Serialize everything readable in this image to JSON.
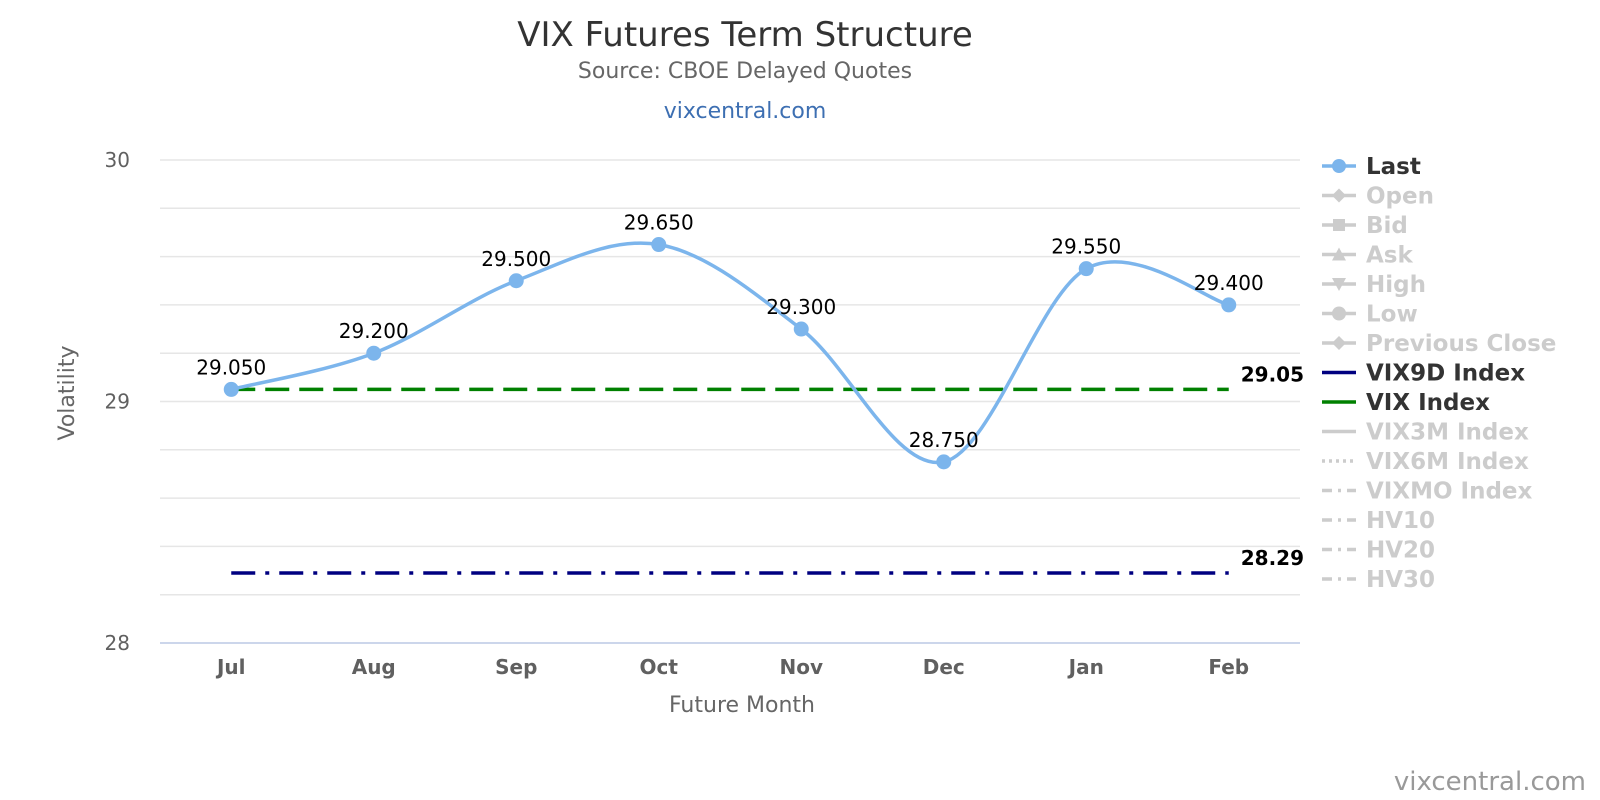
{
  "chart_data": {
    "type": "line",
    "title": "VIX Futures Term Structure",
    "subtitle": "Source: CBOE Delayed Quotes",
    "site_link": "vixcentral.com",
    "credit": "vixcentral.com",
    "xlabel": "Future Month",
    "ylabel": "Volatility",
    "categories": [
      "Jul",
      "Aug",
      "Sep",
      "Oct",
      "Nov",
      "Dec",
      "Jan",
      "Feb"
    ],
    "ylim": [
      28,
      30
    ],
    "yticks": [
      "28",
      "29",
      "30"
    ],
    "grid": true,
    "legend_position": "right",
    "series": [
      {
        "name": "Last",
        "values": [
          29.05,
          29.2,
          29.5,
          29.65,
          29.3,
          28.75,
          29.55,
          29.4
        ],
        "labels": [
          "29.050",
          "29.200",
          "29.500",
          "29.650",
          "29.300",
          "28.750",
          "29.550",
          "29.400"
        ],
        "color": "#7cb5ec"
      }
    ],
    "reference_lines": [
      {
        "name": "VIX Index",
        "value": 29.05,
        "label": "29.05",
        "color": "#008000",
        "style": "dash"
      },
      {
        "name": "VIX9D Index",
        "value": 28.29,
        "label": "28.29",
        "color": "#000080",
        "style": "dashdot"
      }
    ],
    "legend": [
      {
        "name": "Last",
        "symbol": "circle",
        "line": "solid",
        "color": "#7cb5ec",
        "active": true
      },
      {
        "name": "Open",
        "symbol": "diamond",
        "line": "solid",
        "color": "#cccccc",
        "active": false
      },
      {
        "name": "Bid",
        "symbol": "square",
        "line": "solid",
        "color": "#cccccc",
        "active": false
      },
      {
        "name": "Ask",
        "symbol": "triangle",
        "line": "solid",
        "color": "#cccccc",
        "active": false
      },
      {
        "name": "High",
        "symbol": "triangle-down",
        "line": "solid",
        "color": "#cccccc",
        "active": false
      },
      {
        "name": "Low",
        "symbol": "circle",
        "line": "solid",
        "color": "#cccccc",
        "active": false
      },
      {
        "name": "Previous Close",
        "symbol": "diamond",
        "line": "solid",
        "color": "#cccccc",
        "active": false
      },
      {
        "name": "VIX9D Index",
        "symbol": "none",
        "line": "solid",
        "color": "#000080",
        "active": true
      },
      {
        "name": "VIX Index",
        "symbol": "none",
        "line": "solid",
        "color": "#008000",
        "active": true
      },
      {
        "name": "VIX3M Index",
        "symbol": "none",
        "line": "solid",
        "color": "#cccccc",
        "active": false
      },
      {
        "name": "VIX6M Index",
        "symbol": "none",
        "line": "dot",
        "color": "#cccccc",
        "active": false
      },
      {
        "name": "VIXMO Index",
        "symbol": "none",
        "line": "dashdot",
        "color": "#cccccc",
        "active": false
      },
      {
        "name": "HV10",
        "symbol": "none",
        "line": "dashdot",
        "color": "#cccccc",
        "active": false
      },
      {
        "name": "HV20",
        "symbol": "none",
        "line": "dashdot",
        "color": "#cccccc",
        "active": false
      },
      {
        "name": "HV30",
        "symbol": "none",
        "line": "dashdot",
        "color": "#cccccc",
        "active": false
      }
    ]
  }
}
